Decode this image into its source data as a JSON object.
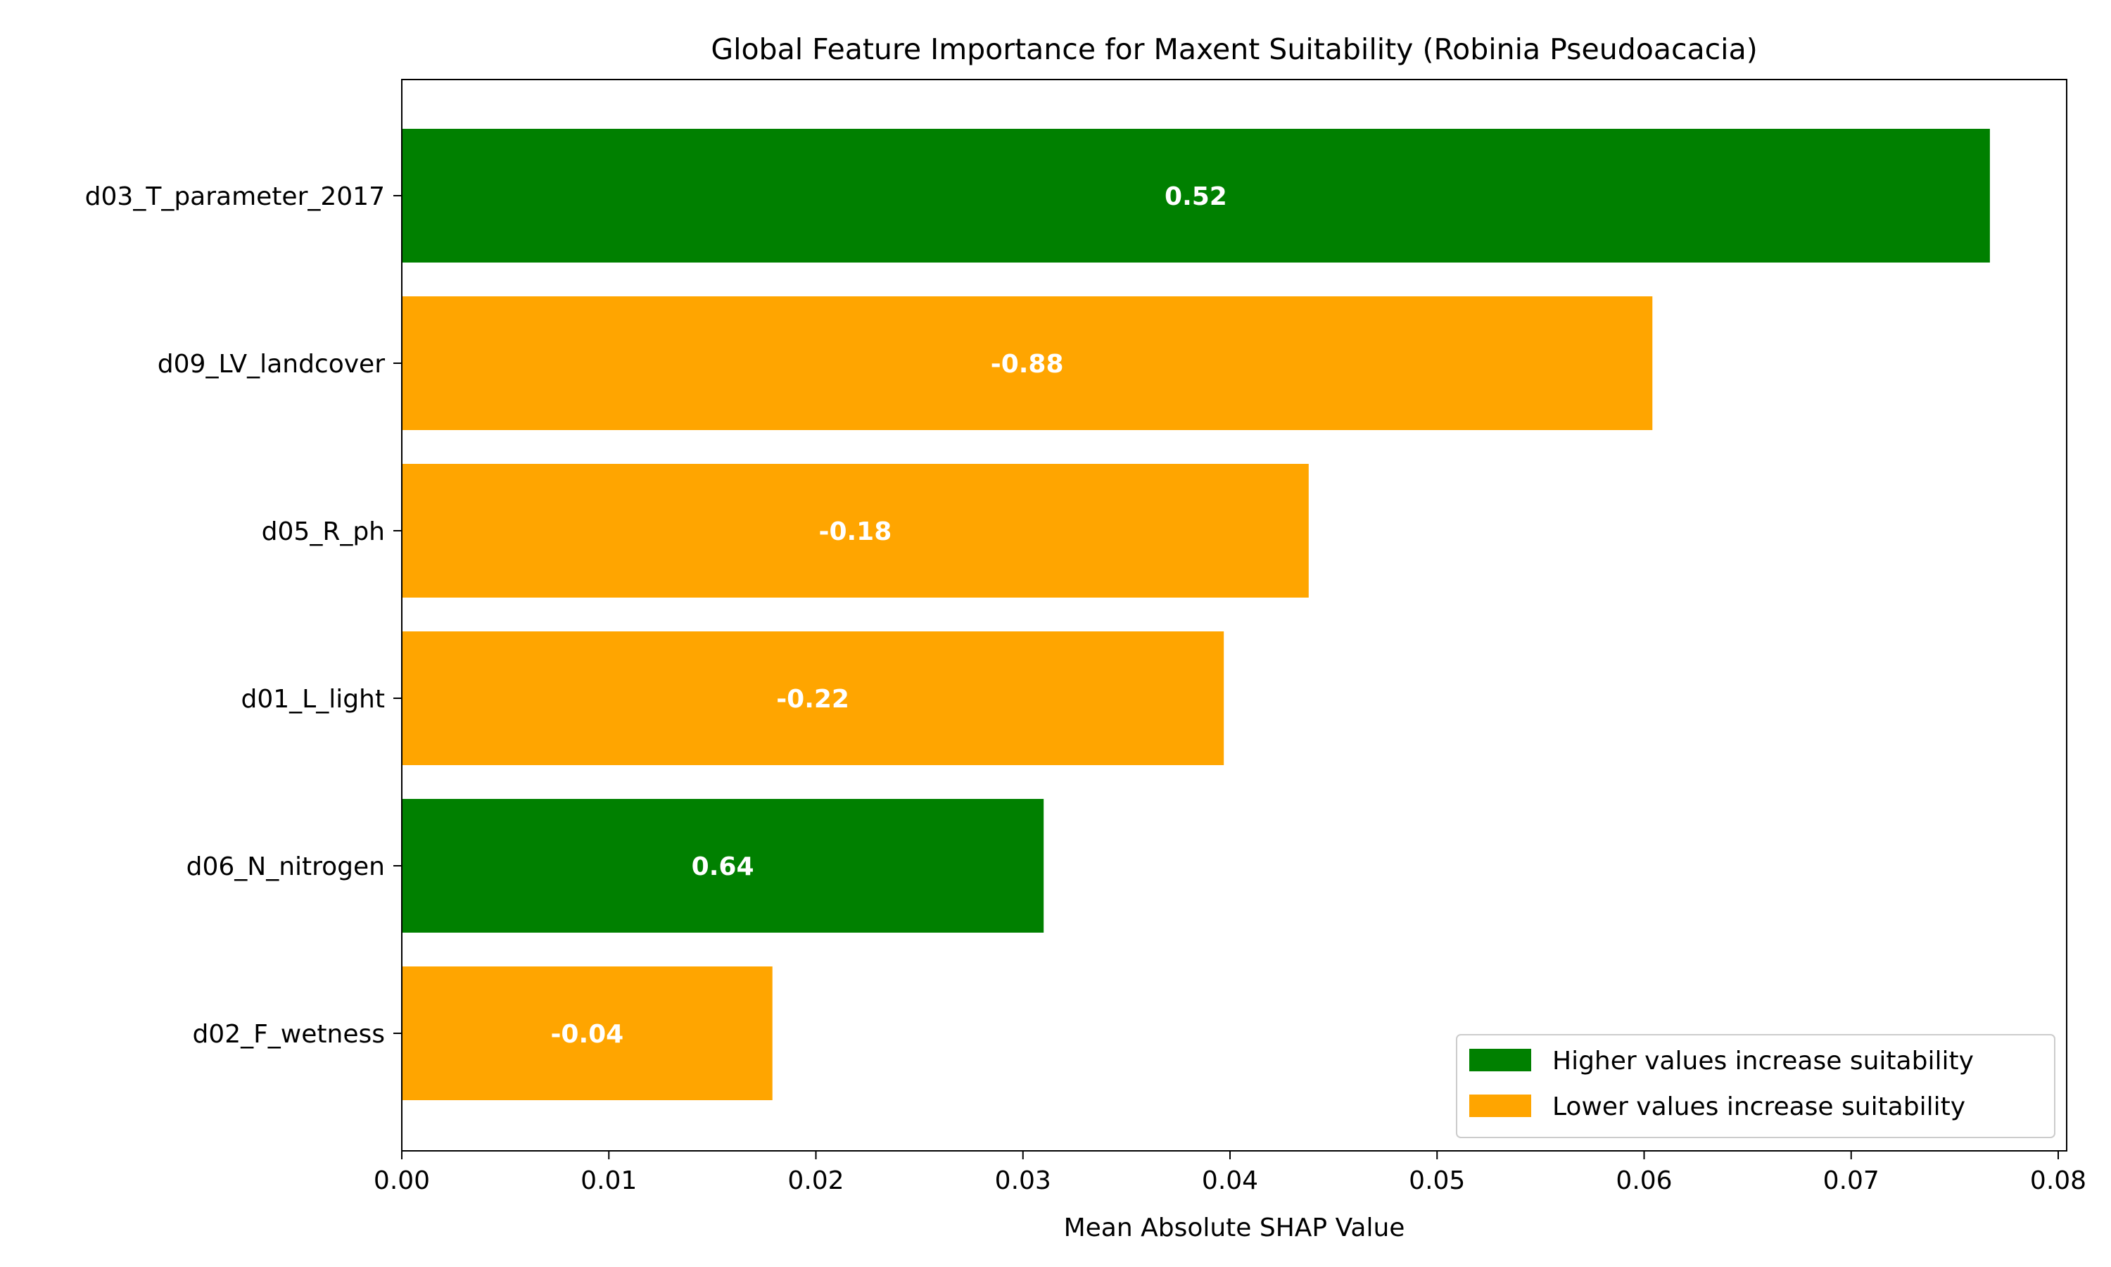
{
  "chart_data": {
    "type": "bar",
    "orientation": "horizontal",
    "title": "Global Feature Importance for Maxent Suitability (Robinia Pseudoacacia)",
    "xlabel": "Mean Absolute SHAP Value",
    "ylabel": "",
    "xlim": [
      0.0,
      0.08
    ],
    "xticks": [
      "0.00",
      "0.01",
      "0.02",
      "0.03",
      "0.04",
      "0.05",
      "0.06",
      "0.07",
      "0.08"
    ],
    "grid": false,
    "legend_position": "lower-right",
    "colors": {
      "positive": "#008000",
      "negative": "#FFA500"
    },
    "legend": [
      {
        "label": "Higher values increase suitability",
        "color": "#008000"
      },
      {
        "label": "Lower values increase suitability",
        "color": "#FFA500"
      }
    ],
    "bars": [
      {
        "category": "d03_T_parameter_2017",
        "value": 0.0767,
        "label": "0.52",
        "direction": "positive"
      },
      {
        "category": "d09_LV_landcover",
        "value": 0.0604,
        "label": "-0.88",
        "direction": "negative"
      },
      {
        "category": "d05_R_ph",
        "value": 0.0438,
        "label": "-0.18",
        "direction": "negative"
      },
      {
        "category": "d01_L_light",
        "value": 0.0397,
        "label": "-0.22",
        "direction": "negative"
      },
      {
        "category": "d06_N_nitrogen",
        "value": 0.031,
        "label": "0.64",
        "direction": "positive"
      },
      {
        "category": "d02_F_wetness",
        "value": 0.0179,
        "label": "-0.04",
        "direction": "negative"
      }
    ]
  }
}
